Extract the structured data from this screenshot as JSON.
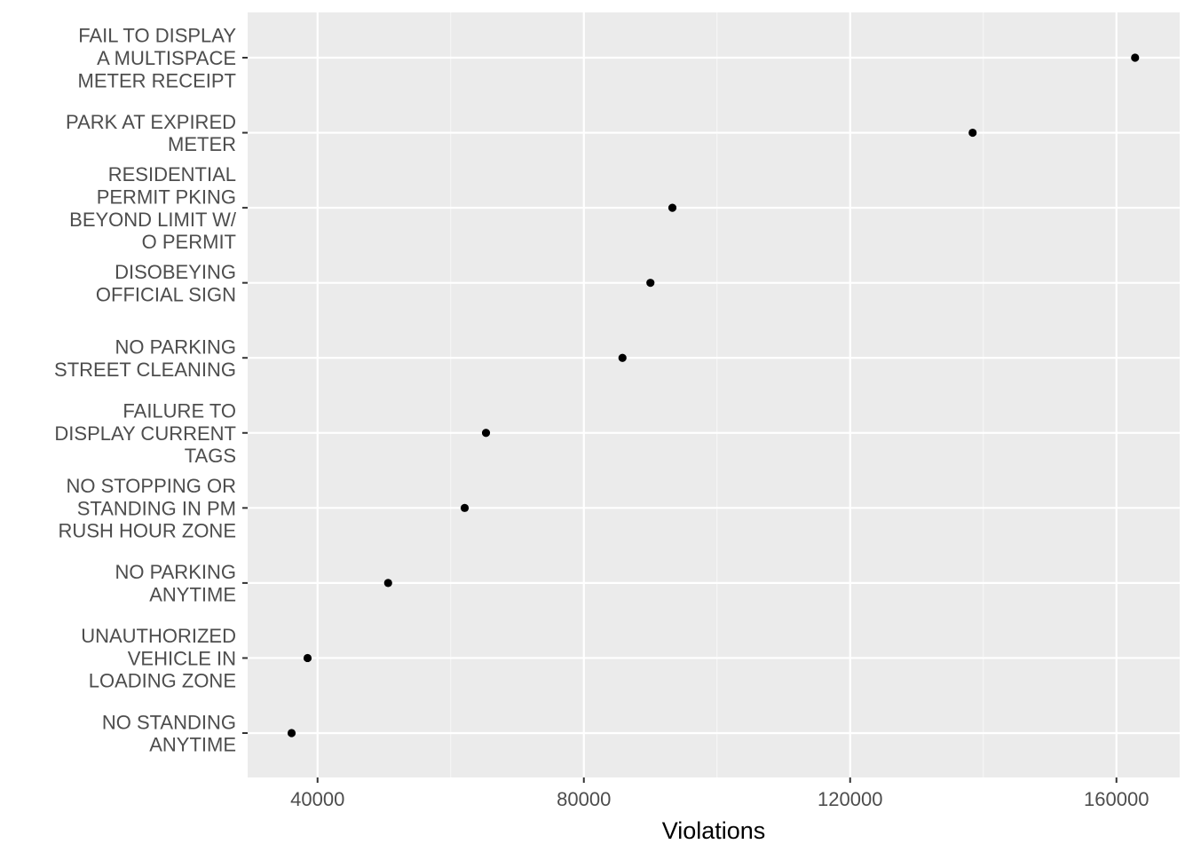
{
  "chart_data": {
    "type": "scatter",
    "title": "",
    "xlabel": "Violations",
    "ylabel": "",
    "xlim": [
      29500,
      169500
    ],
    "xticks": [
      40000,
      80000,
      120000,
      160000
    ],
    "xtick_labels": [
      "40000",
      "80000",
      "120000",
      "160000"
    ],
    "grid": true,
    "colors": {
      "panel": "#ebebeb",
      "grid_major": "#ffffff",
      "point": "#000000",
      "tick": "#333333"
    },
    "points": [
      {
        "label": "FAIL TO DISPLAY A MULTISPACE METER RECEIPT",
        "lines": [
          "FAIL TO DISPLAY",
          "A MULTISPACE",
          "METER RECEIPT"
        ],
        "x": 162800
      },
      {
        "label": "PARK AT EXPIRED METER",
        "lines": [
          "PARK AT EXPIRED",
          "METER"
        ],
        "x": 138400
      },
      {
        "label": "RESIDENTIAL PERMIT PKING BEYOND LIMIT W/ O PERMIT",
        "lines": [
          "RESIDENTIAL",
          "PERMIT PKING",
          "BEYOND LIMIT W/",
          "O PERMIT"
        ],
        "x": 93300
      },
      {
        "label": "DISOBEYING OFFICIAL SIGN",
        "lines": [
          "DISOBEYING",
          "OFFICIAL SIGN"
        ],
        "x": 90000
      },
      {
        "label": "NO PARKING STREET CLEANING",
        "lines": [
          "NO PARKING",
          "STREET CLEANING"
        ],
        "x": 85800
      },
      {
        "label": "FAILURE TO DISPLAY CURRENT TAGS",
        "lines": [
          "FAILURE TO",
          "DISPLAY CURRENT",
          "TAGS"
        ],
        "x": 65300
      },
      {
        "label": "NO STOPPING OR STANDING IN PM RUSH HOUR ZONE",
        "lines": [
          "NO STOPPING OR",
          "STANDING IN PM",
          "RUSH HOUR ZONE"
        ],
        "x": 62100
      },
      {
        "label": "NO PARKING ANYTIME",
        "lines": [
          "NO PARKING",
          "ANYTIME"
        ],
        "x": 50600
      },
      {
        "label": "UNAUTHORIZED VEHICLE IN LOADING ZONE",
        "lines": [
          "UNAUTHORIZED",
          "VEHICLE IN",
          "LOADING ZONE"
        ],
        "x": 38500
      },
      {
        "label": "NO STANDING ANYTIME",
        "lines": [
          "NO STANDING",
          "ANYTIME"
        ],
        "x": 36100
      }
    ]
  }
}
